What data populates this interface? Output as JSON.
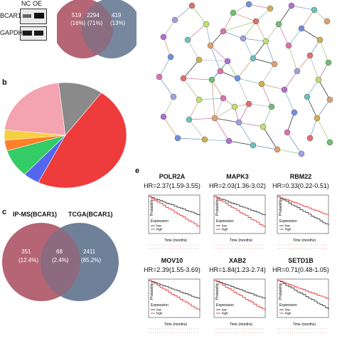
{
  "panel_a": {
    "wb": {
      "col1": "NC",
      "col2": "OE",
      "row1": "BCAR1",
      "row2": "GAPDH"
    },
    "venn": {
      "left_count": "519",
      "left_pct": "(16%)",
      "mid_count": "2294",
      "mid_pct": "(71%)",
      "right_count": "419",
      "right_pct": "(13%)"
    },
    "colors": {
      "left": "#b56574",
      "right": "#6f8199",
      "mid": "#8a6d80"
    }
  },
  "panel_b": {
    "letter": "b",
    "chart_data": {
      "type": "pie",
      "title": "",
      "values": [
        44,
        4,
        8,
        3,
        3,
        20,
        11
      ],
      "colors": [
        "#ee3b3b",
        "#5566ee",
        "#33cc66",
        "#ff7f2a",
        "#f5d040",
        "#f4a3b0",
        "#8a8a8a"
      ]
    }
  },
  "panel_c": {
    "letter": "c",
    "left_title": "IP-MS(BCAR1)",
    "right_title": "TCGA(BCAR1)",
    "left_count": "351",
    "left_pct": "(12.4%)",
    "mid_count": "68",
    "mid_pct": "(2.4%)",
    "right_count": "2411",
    "right_pct": "(85.2%)"
  },
  "panel_e": {
    "letter": "e",
    "plots": [
      {
        "gene": "POLR2A",
        "hr": "HR=2.37(1.59-3.55)"
      },
      {
        "gene": "MAPK3",
        "hr": "HR=2.03(1.36-3.02)"
      },
      {
        "gene": "RBM22",
        "hr": "HR=0.33(0.22-0.51)"
      },
      {
        "gene": "MOV10",
        "hr": "HR=2.39(1.55-3.69)"
      },
      {
        "gene": "XAB2",
        "hr": "HR=1.84(1.23-2.74)"
      },
      {
        "gene": "SETD1B",
        "hr": "HR=0.71(0.48-1.05)"
      }
    ],
    "axis_y": "Probability",
    "axis_x": "Time (months)",
    "legend_title": "Expression",
    "legend_low": "low",
    "legend_high": "high",
    "colors": {
      "low": "#222222",
      "high": "#e02020"
    }
  }
}
